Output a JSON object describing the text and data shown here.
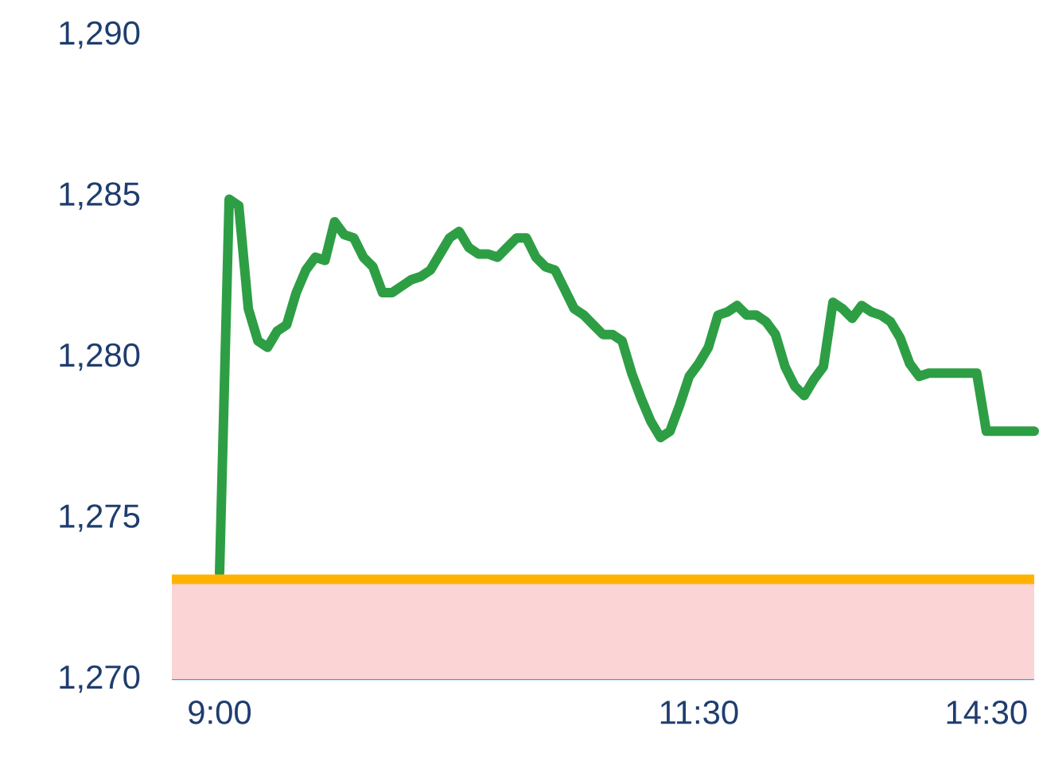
{
  "chart_data": {
    "type": "line",
    "categories": [
      "9:00",
      null,
      null,
      null,
      null,
      null,
      null,
      null,
      null,
      null,
      null,
      null,
      null,
      null,
      null,
      null,
      null,
      null,
      null,
      null,
      null,
      null,
      null,
      null,
      null,
      null,
      null,
      null,
      null,
      null,
      null,
      null,
      null,
      null,
      null,
      null,
      null,
      null,
      null,
      null,
      null,
      null,
      null,
      null,
      null,
      null,
      null,
      null,
      null,
      null,
      "11:30",
      null,
      null,
      null,
      null,
      null,
      null,
      null,
      null,
      null,
      null,
      null,
      null,
      null,
      null,
      null,
      null,
      null,
      null,
      null,
      null,
      null,
      null,
      null,
      null,
      null,
      null,
      null,
      null,
      null,
      "14:30",
      null,
      null,
      null,
      null,
      null
    ],
    "series": [
      {
        "color": "#2e9e45",
        "values": [
          1273.3,
          1284.9,
          1284.7,
          1281.5,
          1280.5,
          1280.3,
          1280.8,
          1281.0,
          1282.0,
          1282.7,
          1283.1,
          1283.0,
          1284.2,
          1283.8,
          1283.7,
          1283.1,
          1282.8,
          1282.0,
          1282.0,
          1282.2,
          1282.4,
          1282.5,
          1282.7,
          1283.2,
          1283.7,
          1283.9,
          1283.4,
          1283.2,
          1283.2,
          1283.1,
          1283.4,
          1283.7,
          1283.7,
          1283.1,
          1282.8,
          1282.7,
          1282.1,
          1281.5,
          1281.3,
          1281.0,
          1280.7,
          1280.7,
          1280.5,
          1279.5,
          1278.7,
          1278.0,
          1277.5,
          1277.7,
          1278.5,
          1279.4,
          1279.8,
          1280.3,
          1281.3,
          1281.4,
          1281.6,
          1281.3,
          1281.3,
          1281.1,
          1280.7,
          1279.7,
          1279.1,
          1278.8,
          1279.3,
          1279.7,
          1281.7,
          1281.5,
          1281.2,
          1281.6,
          1281.4,
          1281.3,
          1281.1,
          1280.6,
          1279.8,
          1279.4,
          1279.5,
          1279.5,
          1279.5,
          1279.5,
          1279.5,
          1279.5,
          1277.7,
          1277.7,
          1277.7,
          1277.7,
          1277.7,
          1277.7
        ]
      }
    ],
    "ylim": [
      1270,
      1290
    ],
    "yticks": [
      {
        "value": 1270,
        "label": "1,270"
      },
      {
        "value": 1275,
        "label": "1,275"
      },
      {
        "value": 1280,
        "label": "1,280"
      },
      {
        "value": 1285,
        "label": "1,285"
      },
      {
        "value": 1290,
        "label": "1,290"
      }
    ],
    "ref_lines": [
      {
        "axis": "y",
        "value": 1273.1,
        "color": "#ffb300"
      }
    ],
    "bands": [
      {
        "axis": "y",
        "from": 1270,
        "to": 1273.1,
        "color": "#fbd5d5"
      }
    ]
  }
}
